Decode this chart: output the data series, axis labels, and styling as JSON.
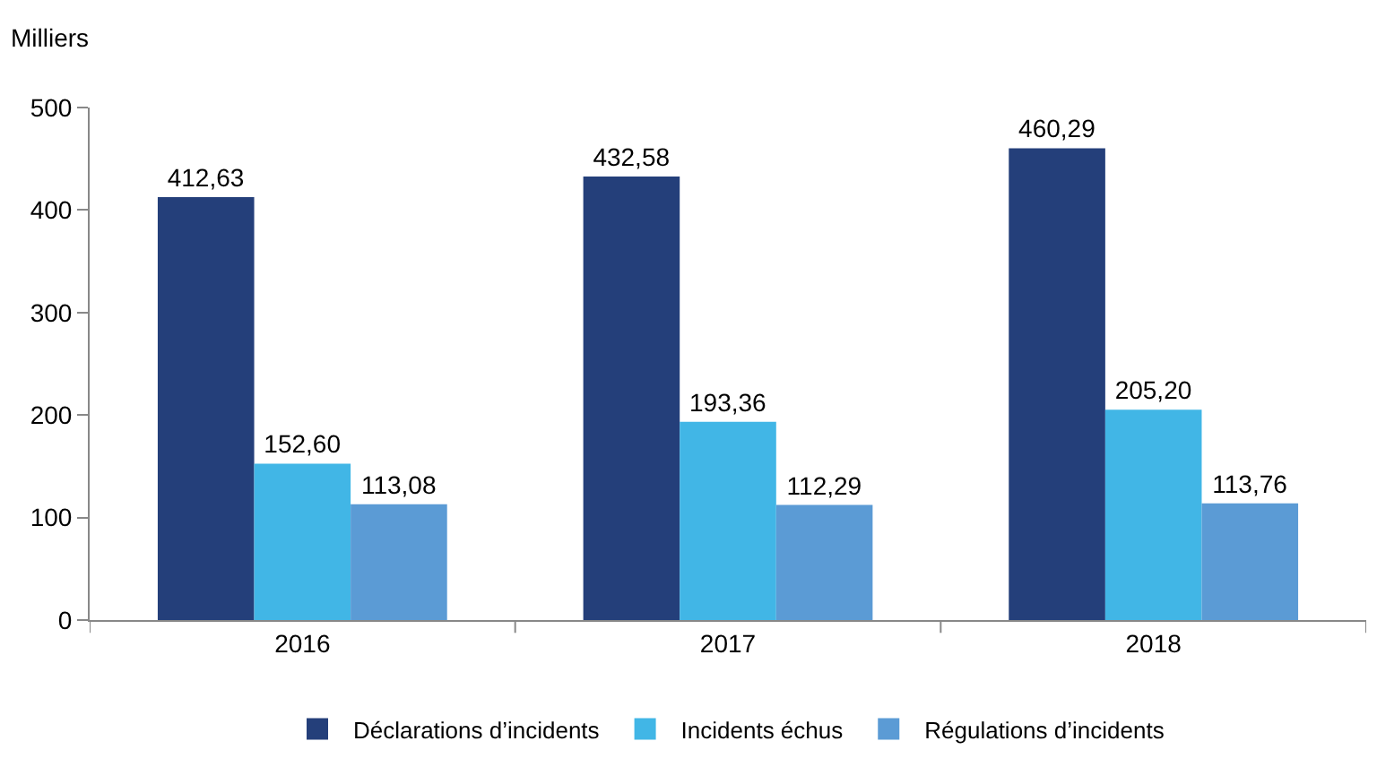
{
  "chart_data": {
    "type": "bar",
    "ylabel": "Milliers",
    "categories": [
      "2016",
      "2017",
      "2018"
    ],
    "series": [
      {
        "name": "Déclarations d’incidents",
        "color": "#243f7a",
        "values": [
          412.63,
          432.58,
          460.29
        ],
        "value_labels": [
          "412,63",
          "432,58",
          "460,29"
        ]
      },
      {
        "name": "Incidents échus",
        "color": "#41b6e6",
        "values": [
          152.6,
          193.36,
          205.2
        ],
        "value_labels": [
          "152,60",
          "193,36",
          "205,20"
        ]
      },
      {
        "name": "Régulations d’incidents",
        "color": "#5b9bd5",
        "values": [
          113.08,
          112.29,
          113.76
        ],
        "value_labels": [
          "113,08",
          "112,29",
          "113,76"
        ]
      }
    ],
    "ylim": [
      0,
      500
    ],
    "yticks": [
      0,
      100,
      200,
      300,
      400,
      500
    ],
    "grid": false,
    "legend": "bottom"
  }
}
